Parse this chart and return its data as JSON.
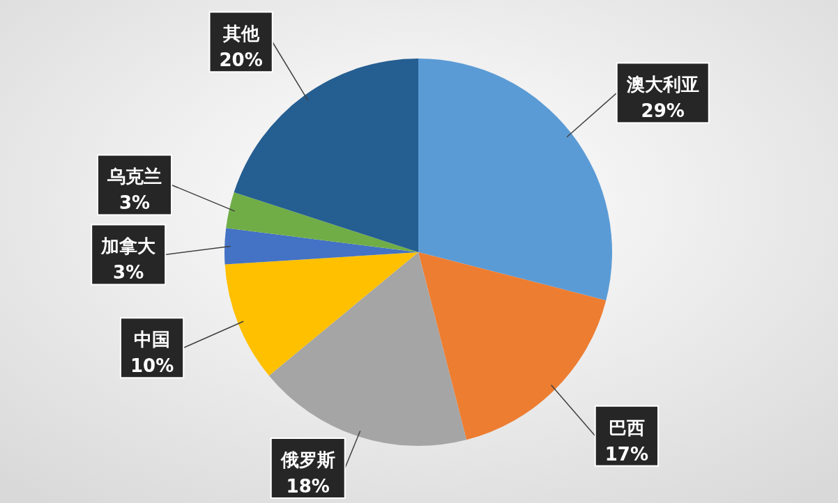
{
  "chart_data": {
    "type": "pie",
    "categories": [
      "澳大利亚",
      "巴西",
      "俄罗斯",
      "中国",
      "加拿大",
      "乌克兰",
      "其他"
    ],
    "values": [
      29,
      17,
      18,
      10,
      3,
      3,
      20
    ],
    "value_labels": [
      "29%",
      "17%",
      "18%",
      "10%",
      "3%",
      "3%",
      "20%"
    ],
    "colors": [
      "#5b9bd5",
      "#ed7d31",
      "#a5a5a5",
      "#ffc000",
      "#4472c4",
      "#70ad47",
      "#255e91"
    ]
  }
}
